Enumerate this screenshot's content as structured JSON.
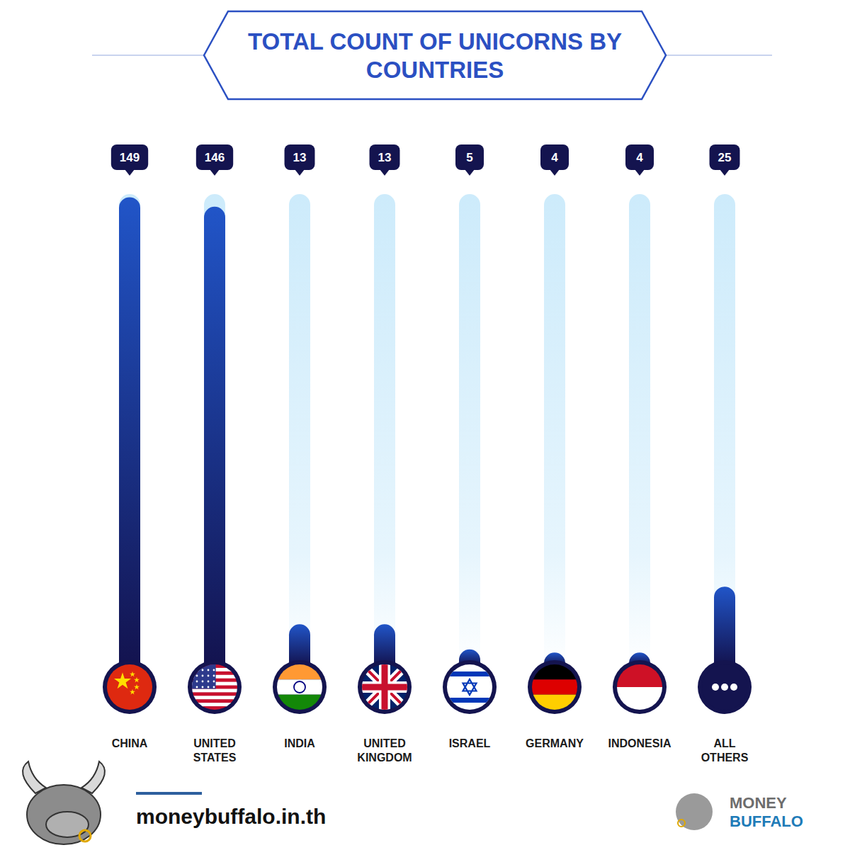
{
  "chart_data": {
    "type": "bar",
    "title": "TOTAL COUNT OF UNICORNS BY COUNTRIES",
    "categories": [
      "CHINA",
      "UNITED STATES",
      "INDIA",
      "UNITED KINGDOM",
      "ISRAEL",
      "GERMANY",
      "INDONESIA",
      "ALL OTHERS"
    ],
    "values": [
      149,
      146,
      13,
      13,
      5,
      4,
      4,
      25
    ],
    "color": "#2155c8",
    "ylim": [
      0,
      150
    ],
    "data_labels": true,
    "tick_labels": false,
    "grid": false,
    "annotations": [
      "moneybuffalo.in.th",
      "MONEY",
      "BUFFALO"
    ]
  }
}
